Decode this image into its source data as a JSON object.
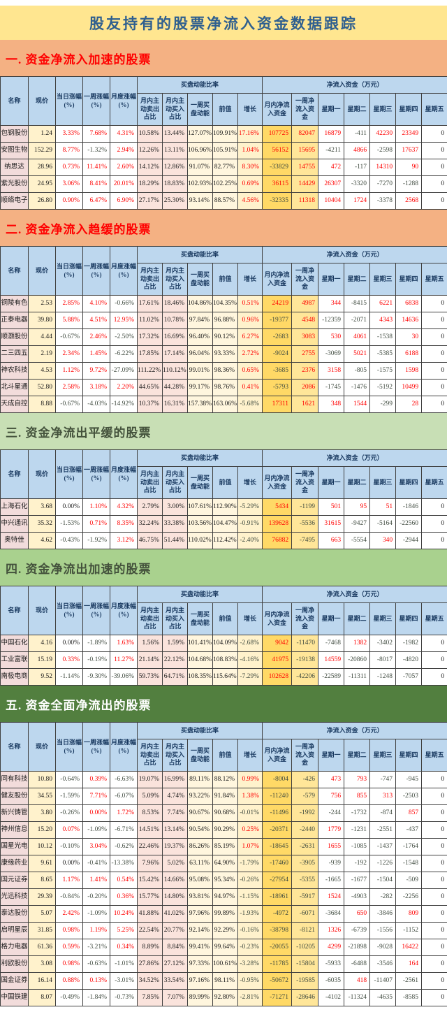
{
  "title": "股友持有的股票净流入资金数据跟踪",
  "table": {
    "simple_headers": [
      "名称",
      "现价",
      "当日涨幅(%)",
      "一周涨幅(%)",
      "月度涨幅(%)"
    ],
    "group_buy": {
      "label": "买盘动能比率",
      "children": [
        "月内主动卖出占比",
        "月内主动买入占比",
        "一周买盘动能",
        "前值",
        "增长"
      ]
    },
    "group_net": {
      "label": "净流入资金（万元）",
      "children": [
        "月内净流入资金",
        "一周净流入资金",
        "星期一",
        "星期二",
        "星期三",
        "星期四",
        "星期五"
      ]
    }
  },
  "sections": [
    {
      "heading": "一. 资金净流入加速的股票",
      "theme": "orange",
      "rows": [
        [
          "包钢股份",
          "1.24",
          "3.33%",
          "7.68%",
          "4.31%",
          "10.58%",
          "13.44%",
          "127.07%",
          "109.91%",
          "17.16%",
          "107725",
          "82047",
          "16879",
          "-411",
          "42230",
          "23349",
          "0"
        ],
        [
          "安图生物",
          "152.29",
          "8.77%",
          "-1.32%",
          "2.94%",
          "12.26%",
          "13.11%",
          "106.96%",
          "105.91%",
          "1.04%",
          "56152",
          "15695",
          "-4211",
          "4866",
          "-2598",
          "17637",
          "0"
        ],
        [
          "纳思达",
          "28.96",
          "0.73%",
          "11.41%",
          "2.60%",
          "14.12%",
          "12.86%",
          "91.07%",
          "82.77%",
          "8.30%",
          "-33829",
          "14755",
          "472",
          "-117",
          "14310",
          "90",
          "0"
        ],
        [
          "紫光股份",
          "24.95",
          "3.06%",
          "8.41%",
          "20.01%",
          "18.29%",
          "18.83%",
          "102.93%",
          "102.25%",
          "0.69%",
          "36115",
          "14429",
          "26307",
          "-3320",
          "-7270",
          "-1288",
          "0"
        ],
        [
          "顺络电子",
          "26.80",
          "0.90%",
          "6.47%",
          "6.90%",
          "27.17%",
          "25.30%",
          "93.14%",
          "88.57%",
          "4.56%",
          "-32335",
          "11318",
          "10404",
          "1724",
          "-3378",
          "2568",
          "0"
        ]
      ]
    },
    {
      "heading": "二. 资金净流入趋缓的股票",
      "theme": "orange",
      "rows": [
        [
          "铜陵有色",
          "2.53",
          "2.85%",
          "4.10%",
          "-0.66%",
          "17.61%",
          "18.46%",
          "104.86%",
          "104.35%",
          "0.51%",
          "24219",
          "4987",
          "344",
          "-8415",
          "6221",
          "6838",
          "0"
        ],
        [
          "正泰电器",
          "39.80",
          "5.88%",
          "4.51%",
          "12.95%",
          "11.02%",
          "10.78%",
          "97.84%",
          "96.88%",
          "0.96%",
          "-19377",
          "4548",
          "-12359",
          "-2071",
          "4343",
          "14636",
          "0"
        ],
        [
          "顺灏股份",
          "4.44",
          "-0.67%",
          "2.46%",
          "-2.50%",
          "17.32%",
          "16.69%",
          "96.40%",
          "90.12%",
          "6.27%",
          "-2683",
          "3083",
          "530",
          "4061",
          "-1538",
          "30",
          "0"
        ],
        [
          "二三四五",
          "2.19",
          "2.34%",
          "1.45%",
          "-6.22%",
          "17.85%",
          "17.14%",
          "96.04%",
          "93.33%",
          "2.72%",
          "-9024",
          "2755",
          "-3069",
          "5021",
          "-5385",
          "6188",
          "0"
        ],
        [
          "神农科技",
          "4.53",
          "1.12%",
          "9.72%",
          "-27.09%",
          "111.22%",
          "110.12%",
          "99.01%",
          "98.36%",
          "0.65%",
          "-3685",
          "2376",
          "3158",
          "-805",
          "-1575",
          "1598",
          "0"
        ],
        [
          "北斗星通",
          "52.80",
          "2.58%",
          "3.18%",
          "2.20%",
          "44.65%",
          "44.28%",
          "99.17%",
          "98.76%",
          "0.41%",
          "-5793",
          "2086",
          "-1745",
          "-1476",
          "-5192",
          "10499",
          "0"
        ],
        [
          "天成自控",
          "8.88",
          "-0.67%",
          "-4.03%",
          "-14.92%",
          "10.37%",
          "16.31%",
          "157.38%",
          "163.06%",
          "-5.68%",
          "17311",
          "1621",
          "348",
          "1544",
          "-299",
          "28",
          "0"
        ]
      ]
    },
    {
      "heading": "三. 资金净流出平缓的股票",
      "theme": "green-light",
      "rows": [
        [
          "上海石化",
          "3.68",
          "0.00%",
          "1.10%",
          "4.32%",
          "2.79%",
          "3.00%",
          "107.61%",
          "112.90%",
          "-5.29%",
          "5434",
          "-1199",
          "501",
          "95",
          "51",
          "-1846",
          "0"
        ],
        [
          "中兴通讯",
          "35.32",
          "-1.53%",
          "0.71%",
          "8.35%",
          "32.24%",
          "33.38%",
          "103.56%",
          "104.47%",
          "-0.91%",
          "139628",
          "-5536",
          "31615",
          "-9427",
          "-5164",
          "-22560",
          "0"
        ],
        [
          "奥特佳",
          "4.62",
          "-0.43%",
          "-1.92%",
          "3.12%",
          "46.75%",
          "51.44%",
          "110.02%",
          "112.42%",
          "-2.40%",
          "76882",
          "-7495",
          "663",
          "-5554",
          "340",
          "-2944",
          "0"
        ]
      ]
    },
    {
      "heading": "四. 资金净流出加速的股票",
      "theme": "green-mid",
      "rows": [
        [
          "中国石化",
          "4.16",
          "0.00%",
          "-1.89%",
          "1.63%",
          "1.56%",
          "1.59%",
          "101.41%",
          "104.09%",
          "-2.68%",
          "9042",
          "-11470",
          "-7468",
          "1382",
          "-3402",
          "-1982",
          "0"
        ],
        [
          "工业富联",
          "15.19",
          "0.33%",
          "-0.19%",
          "11.27%",
          "21.14%",
          "22.12%",
          "104.68%",
          "108.83%",
          "-4.16%",
          "41975",
          "-19138",
          "14559",
          "-20860",
          "-8017",
          "-4820",
          "0"
        ],
        [
          "南极电商",
          "9.52",
          "-1.14%",
          "-9.30%",
          "-39.06%",
          "59.73%",
          "64.71%",
          "108.35%",
          "115.64%",
          "-7.29%",
          "102628",
          "-42206",
          "-22589",
          "-11311",
          "-1248",
          "-7057",
          "0"
        ]
      ]
    },
    {
      "heading": "五. 资金全面净流出的股票",
      "theme": "green-dark",
      "rows": [
        [
          "同有科技",
          "10.80",
          "-0.64%",
          "0.39%",
          "-6.63%",
          "19.07%",
          "16.99%",
          "89.11%",
          "88.12%",
          "0.99%",
          "-8004",
          "-426",
          "473",
          "793",
          "-747",
          "-945",
          "0"
        ],
        [
          "健友股份",
          "34.55",
          "-1.59%",
          "7.71%",
          "-6.07%",
          "5.09%",
          "4.74%",
          "93.22%",
          "91.84%",
          "1.38%",
          "-11240",
          "-579",
          "756",
          "855",
          "313",
          "-2503",
          "0"
        ],
        [
          "新兴铸管",
          "3.80",
          "-0.26%",
          "0.00%",
          "1.72%",
          "8.53%",
          "7.74%",
          "90.67%",
          "90.68%",
          "-0.01%",
          "-11496",
          "-1992",
          "-244",
          "-1732",
          "-874",
          "857",
          "0"
        ],
        [
          "神州信息",
          "15.20",
          "0.07%",
          "-1.09%",
          "-6.71%",
          "14.51%",
          "13.14%",
          "90.54%",
          "90.29%",
          "0.25%",
          "-20371",
          "-2440",
          "1779",
          "-1231",
          "-2551",
          "-437",
          "0"
        ],
        [
          "国星光电",
          "10.12",
          "-0.10%",
          "3.04%",
          "-0.62%",
          "22.46%",
          "19.37%",
          "86.26%",
          "85.19%",
          "1.07%",
          "-18645",
          "-2631",
          "1655",
          "-1085",
          "-1437",
          "-1764",
          "0"
        ],
        [
          "康缘药业",
          "9.61",
          "0.00%",
          "-0.41%",
          "-13.38%",
          "7.96%",
          "5.02%",
          "63.11%",
          "64.90%",
          "-1.79%",
          "-17460",
          "-3905",
          "-939",
          "-192",
          "-1226",
          "-1548",
          "0"
        ],
        [
          "国元证券",
          "8.65",
          "1.17%",
          "1.41%",
          "0.54%",
          "15.42%",
          "14.66%",
          "95.08%",
          "95.34%",
          "-0.26%",
          "-27954",
          "-5355",
          "-1665",
          "-1677",
          "-1504",
          "-509",
          "0"
        ],
        [
          "光迅科技",
          "29.39",
          "-0.84%",
          "-0.20%",
          "0.36%",
          "15.77%",
          "14.80%",
          "93.81%",
          "94.97%",
          "-1.15%",
          "-18961",
          "-5917",
          "1524",
          "-4903",
          "-282",
          "-2256",
          "0"
        ],
        [
          "泰达股份",
          "5.07",
          "2.42%",
          "-1.09%",
          "10.24%",
          "41.88%",
          "41.02%",
          "97.96%",
          "99.89%",
          "-1.93%",
          "-4972",
          "-6071",
          "-3684",
          "650",
          "-3846",
          "809",
          "0"
        ],
        [
          "启明星辰",
          "31.85",
          "0.98%",
          "1.19%",
          "5.25%",
          "22.54%",
          "20.77%",
          "92.14%",
          "92.29%",
          "-0.16%",
          "-38798",
          "-8121",
          "1326",
          "-6739",
          "-1556",
          "-1152",
          "0"
        ],
        [
          "格力电器",
          "61.36",
          "0.59%",
          "-3.21%",
          "0.34%",
          "8.89%",
          "8.84%",
          "99.41%",
          "99.64%",
          "-0.23%",
          "-20055",
          "-10205",
          "4299",
          "-21898",
          "-9028",
          "16422",
          "0"
        ],
        [
          "利欧股份",
          "3.08",
          "0.98%",
          "-0.63%",
          "-1.01%",
          "27.86%",
          "27.12%",
          "97.33%",
          "100.61%",
          "-3.28%",
          "-11785",
          "-15804",
          "-5933",
          "-6488",
          "-3546",
          "164",
          "0"
        ],
        [
          "国金证券",
          "16.14",
          "0.88%",
          "0.13%",
          "-3.01%",
          "34.52%",
          "33.54%",
          "97.16%",
          "98.11%",
          "-0.95%",
          "-50672",
          "-19585",
          "-6035",
          "418",
          "-11407",
          "-2561",
          "0"
        ],
        [
          "中国铁建",
          "8.07",
          "-0.49%",
          "-1.84%",
          "-0.73%",
          "7.85%",
          "7.07%",
          "89.99%",
          "92.80%",
          "-2.81%",
          "-71271",
          "-28646",
          "-4102",
          "-11324",
          "-4635",
          "-8585",
          "0"
        ]
      ]
    }
  ],
  "red_zero_cells": [
    [
      4,
      2,
      3
    ]
  ],
  "colors": {
    "title_bg": "#FFE690",
    "title_text": "#2F5F8F",
    "band_orange": "#F4B183",
    "band_green_light": "#C8DFB5",
    "band_green_mid": "#A9D18E",
    "band_green_dark": "#527F3F",
    "section_red_text": "#FF0000",
    "header_bg": "#BDD7EE",
    "header_text": "#17375E",
    "positive_value": "#FF0000",
    "negative_value": "#3F4A3F",
    "highlight_month_net": "#FFD966",
    "highlight_week_net": "#FFE699"
  }
}
